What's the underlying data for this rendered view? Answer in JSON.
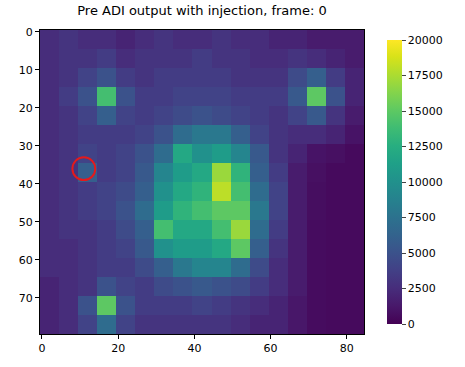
{
  "chart_data": {
    "type": "heatmap",
    "title": "Pre ADI output with injection, frame: 0",
    "x": [
      2,
      7,
      12,
      17,
      22,
      27,
      32,
      37,
      42,
      47,
      52,
      57,
      62,
      67,
      72,
      77,
      82
    ],
    "y": [
      2,
      7,
      12,
      17,
      22,
      27,
      32,
      37,
      42,
      47,
      52,
      57,
      62,
      67,
      72,
      77
    ],
    "cells": [
      [
        2500,
        3000,
        2500,
        2500,
        2000,
        2500,
        3000,
        2500,
        2500,
        3000,
        2500,
        2500,
        2000,
        2000,
        1500,
        1500,
        1500
      ],
      [
        2500,
        3000,
        3000,
        3500,
        2500,
        3000,
        3000,
        3000,
        3500,
        3000,
        3000,
        2500,
        2500,
        3000,
        2500,
        2000,
        1500
      ],
      [
        2500,
        3000,
        4000,
        5000,
        3500,
        3000,
        3500,
        3500,
        3500,
        3500,
        3000,
        3000,
        3000,
        4500,
        6000,
        3500,
        2000
      ],
      [
        2500,
        3500,
        5000,
        14000,
        5000,
        3500,
        3500,
        4000,
        4000,
        4000,
        3500,
        3500,
        3500,
        5500,
        15000,
        5000,
        2000
      ],
      [
        2500,
        3000,
        4000,
        6000,
        4000,
        3500,
        4000,
        4500,
        5000,
        4500,
        4000,
        3500,
        3000,
        4000,
        5500,
        3000,
        1500
      ],
      [
        2500,
        3000,
        3500,
        3500,
        3500,
        4000,
        5000,
        7000,
        8000,
        8000,
        6000,
        4000,
        3000,
        2500,
        2500,
        2000,
        1000
      ],
      [
        2500,
        3000,
        4000,
        3500,
        4000,
        5000,
        7000,
        12000,
        10000,
        11000,
        9000,
        5500,
        3000,
        2000,
        1000,
        800,
        500
      ],
      [
        2500,
        3000,
        6000,
        3500,
        4000,
        5500,
        9000,
        11000,
        12000,
        17000,
        13000,
        6000,
        3500,
        1500,
        800,
        500,
        500
      ],
      [
        2500,
        3000,
        3500,
        4000,
        4500,
        6000,
        10000,
        12000,
        13000,
        18000,
        14000,
        7000,
        4000,
        1500,
        700,
        500,
        500
      ],
      [
        2500,
        3000,
        3500,
        4000,
        5000,
        7000,
        11000,
        13000,
        14000,
        15000,
        15000,
        8000,
        4000,
        1500,
        700,
        500,
        500
      ],
      [
        2500,
        3000,
        3000,
        3500,
        4500,
        6000,
        14000,
        12000,
        12000,
        14000,
        17000,
        7000,
        3500,
        1500,
        600,
        500,
        500
      ],
      [
        2500,
        2500,
        3000,
        3500,
        4000,
        5500,
        10000,
        11000,
        11000,
        12000,
        15000,
        6000,
        3000,
        1500,
        600,
        500,
        500
      ],
      [
        2500,
        2500,
        3000,
        3500,
        3500,
        4500,
        6000,
        8000,
        9000,
        9000,
        7000,
        4500,
        2500,
        1500,
        600,
        500,
        500
      ],
      [
        2000,
        2500,
        3000,
        5000,
        4000,
        3500,
        4500,
        5000,
        5500,
        5000,
        4500,
        3500,
        2500,
        1500,
        600,
        500,
        500
      ],
      [
        2000,
        2500,
        5000,
        15000,
        5000,
        3500,
        3500,
        3500,
        4000,
        3500,
        3000,
        2500,
        2000,
        1200,
        600,
        500,
        500
      ],
      [
        2000,
        2500,
        4000,
        7000,
        4000,
        3000,
        3000,
        3000,
        3000,
        3000,
        2500,
        2000,
        2000,
        1200,
        600,
        500,
        500
      ]
    ],
    "xlim": [
      -0.5,
      84.5
    ],
    "ylim": [
      79.5,
      -0.5
    ],
    "xticks": [
      0,
      20,
      40,
      60,
      80
    ],
    "yticks": [
      0,
      10,
      20,
      30,
      40,
      50,
      60,
      70
    ],
    "color": "Viridis",
    "colorbar_range": [
      0,
      20000
    ],
    "colorbar_ticks": [
      0,
      2500,
      5000,
      7500,
      10000,
      12500,
      15000,
      17500,
      20000
    ],
    "circle": {
      "x": 11,
      "y": 36,
      "radius": 3,
      "color": "#e41a1c"
    },
    "grid": false
  }
}
